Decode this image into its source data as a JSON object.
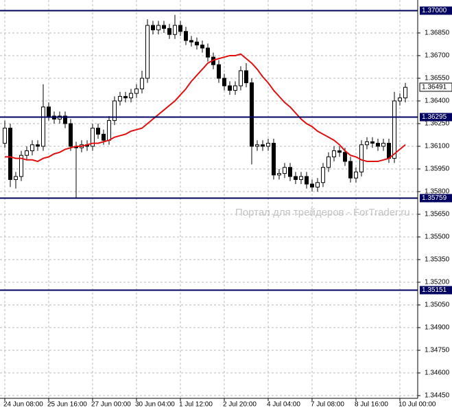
{
  "chart_data": {
    "type": "candlestick",
    "watermark": "Портал для трейдеров - ForTrader.ru",
    "categories": [
      "24 Jun 08:00",
      null,
      null,
      null,
      null,
      null,
      null,
      null,
      "25 Jun 16:00",
      null,
      null,
      null,
      null,
      null,
      null,
      null,
      "27 Jun 00:00",
      null,
      null,
      null,
      null,
      null,
      null,
      null,
      "30 Jun 04:00",
      null,
      null,
      null,
      null,
      null,
      null,
      null,
      "1 Jul 12:00",
      null,
      null,
      null,
      null,
      null,
      null,
      null,
      "2 Jul 20:00",
      null,
      null,
      null,
      null,
      null,
      null,
      null,
      "4 Jul 04:00",
      null,
      null,
      null,
      null,
      null,
      null,
      null,
      "7 Jul 08:00",
      null,
      null,
      null,
      null,
      null,
      null,
      null,
      "8 Jul 16:00",
      null,
      null,
      null,
      null,
      null,
      null,
      null,
      "10 Jul 00:00",
      null
    ],
    "open": [
      1.3612,
      1.3622,
      1.3588,
      1.359,
      1.3604,
      1.3607,
      1.3611,
      1.361,
      1.3636,
      1.363,
      1.3628,
      1.363,
      1.3625,
      1.361,
      1.3609,
      1.3611,
      1.361,
      1.3622,
      1.3618,
      1.3614,
      1.3627,
      1.364,
      1.3643,
      1.3642,
      1.3645,
      1.3648,
      1.3655,
      1.369,
      1.3687,
      1.369,
      1.3688,
      1.3684,
      1.369,
      1.3686,
      1.368,
      1.3679,
      1.3677,
      1.3675,
      1.3669,
      1.3664,
      1.3655,
      1.365,
      1.3647,
      1.365,
      1.366,
      1.3652,
      1.361,
      1.3611,
      1.361,
      1.3612,
      1.3591,
      1.3592,
      1.3596,
      1.359,
      1.3588,
      1.359,
      1.3585,
      1.3583,
      1.3586,
      1.3596,
      1.3603,
      1.3607,
      1.3606,
      1.36,
      1.3589,
      1.3593,
      1.3611,
      1.3613,
      1.3612,
      1.361,
      1.3612,
      1.3602,
      1.364,
      1.3642
    ],
    "high": [
      1.3627,
      1.3625,
      1.3593,
      1.3607,
      1.361,
      1.3614,
      1.3614,
      1.3651,
      1.3639,
      1.3633,
      1.3633,
      1.3633,
      1.3628,
      1.3613,
      1.3614,
      1.3614,
      1.3625,
      1.3625,
      1.3621,
      1.363,
      1.3643,
      1.3646,
      1.3646,
      1.3648,
      1.3651,
      1.366,
      1.3694,
      1.3693,
      1.3693,
      1.3693,
      1.3691,
      1.3697,
      1.3693,
      1.3689,
      1.3683,
      1.3682,
      1.368,
      1.3678,
      1.3672,
      1.3667,
      1.3658,
      1.3653,
      1.3653,
      1.3663,
      1.3665,
      1.3655,
      1.3614,
      1.3614,
      1.3615,
      1.3615,
      1.3595,
      1.3599,
      1.3599,
      1.3593,
      1.3593,
      1.3593,
      1.3588,
      1.3589,
      1.3599,
      1.3606,
      1.361,
      1.361,
      1.3609,
      1.3603,
      1.3596,
      1.3614,
      1.3616,
      1.3616,
      1.3615,
      1.3615,
      1.3615,
      1.3646,
      1.3645,
      1.3652
    ],
    "low": [
      1.3609,
      1.3583,
      1.3582,
      1.3587,
      1.3601,
      1.3604,
      1.3607,
      1.3607,
      1.3627,
      1.3625,
      1.3625,
      1.3622,
      1.3607,
      1.3576,
      1.3606,
      1.3607,
      1.3607,
      1.3615,
      1.3611,
      1.3611,
      1.3624,
      1.3637,
      1.3639,
      1.3639,
      1.3642,
      1.3645,
      1.3652,
      1.3684,
      1.3684,
      1.3685,
      1.3681,
      1.3681,
      1.3683,
      1.3677,
      1.3676,
      1.3674,
      1.3672,
      1.3666,
      1.3661,
      1.3652,
      1.3647,
      1.3644,
      1.3644,
      1.3647,
      1.3649,
      1.3598,
      1.3607,
      1.3607,
      1.3607,
      1.3588,
      1.3588,
      1.3589,
      1.3587,
      1.3585,
      1.3585,
      1.3582,
      1.358,
      1.358,
      1.3583,
      1.3593,
      1.36,
      1.3603,
      1.3597,
      1.3586,
      1.3586,
      1.359,
      1.3608,
      1.3609,
      1.3607,
      1.3607,
      1.3599,
      1.3599,
      1.3637,
      1.3639
    ],
    "close": [
      1.3622,
      1.3588,
      1.359,
      1.3604,
      1.3607,
      1.3611,
      1.361,
      1.3636,
      1.363,
      1.3628,
      1.363,
      1.3625,
      1.361,
      1.3609,
      1.3611,
      1.361,
      1.3622,
      1.3618,
      1.3614,
      1.3627,
      1.364,
      1.3643,
      1.3642,
      1.3645,
      1.3648,
      1.3655,
      1.369,
      1.3687,
      1.369,
      1.3688,
      1.3684,
      1.369,
      1.3686,
      1.368,
      1.3679,
      1.3677,
      1.3675,
      1.3669,
      1.3664,
      1.3655,
      1.365,
      1.3647,
      1.365,
      1.366,
      1.3652,
      1.361,
      1.3611,
      1.361,
      1.3612,
      1.3591,
      1.3592,
      1.3596,
      1.359,
      1.3588,
      1.359,
      1.3585,
      1.3583,
      1.3586,
      1.3596,
      1.3603,
      1.3607,
      1.3606,
      1.36,
      1.3589,
      1.3593,
      1.3611,
      1.3613,
      1.3612,
      1.361,
      1.3612,
      1.3602,
      1.364,
      1.3642,
      1.3649
    ],
    "up_color": "#ffffff",
    "down_color": "#000000",
    "moving_average": {
      "color": "#e01010",
      "values": [
        1.3603,
        1.3603,
        1.3602,
        1.3602,
        1.3601,
        1.3601,
        1.36,
        1.3602,
        1.3603,
        1.3605,
        1.3606,
        1.3608,
        1.3609,
        1.361,
        1.361,
        1.3611,
        1.3612,
        1.3612,
        1.3613,
        1.3614,
        1.3616,
        1.3617,
        1.3618,
        1.362,
        1.3621,
        1.3622,
        1.3625,
        1.3628,
        1.3631,
        1.3634,
        1.3637,
        1.364,
        1.3644,
        1.3648,
        1.3653,
        1.3657,
        1.3661,
        1.3665,
        1.3667,
        1.3668,
        1.3669,
        1.367,
        1.367,
        1.3671,
        1.3668,
        1.3665,
        1.3661,
        1.3656,
        1.3652,
        1.3647,
        1.3643,
        1.3639,
        1.3636,
        1.3632,
        1.3628,
        1.3625,
        1.3623,
        1.362,
        1.3618,
        1.3616,
        1.3614,
        1.3611,
        1.3607,
        1.3604,
        1.3603,
        1.3601,
        1.36,
        1.36,
        1.36,
        1.3601,
        1.3602,
        1.3605,
        1.3608,
        1.3611
      ]
    },
    "levels": [
      {
        "value": 1.37,
        "label": "1.37000"
      },
      {
        "value": 1.36295,
        "label": "1.36295"
      },
      {
        "value": 1.35759,
        "label": "1.35759"
      },
      {
        "value": 1.35151,
        "label": "1.35151"
      }
    ],
    "level_color": "#000060",
    "current_price": {
      "value": 1.36491,
      "label": "1.36491"
    },
    "ylim": [
      1.34432,
      1.37068
    ],
    "yticks": [
      {
        "value": 1.3445,
        "label": "1.34450"
      },
      {
        "value": 1.346,
        "label": "1.34600"
      },
      {
        "value": 1.3475,
        "label": "1.34750"
      },
      {
        "value": 1.349,
        "label": "1.34900"
      },
      {
        "value": 1.3505,
        "label": "1.35050"
      },
      {
        "value": 1.352,
        "label": "1.35200"
      },
      {
        "value": 1.3535,
        "label": "1.35350"
      },
      {
        "value": 1.355,
        "label": "1.35500"
      },
      {
        "value": 1.3565,
        "label": "1.35650"
      },
      {
        "value": 1.358,
        "label": "1.35800"
      },
      {
        "value": 1.3595,
        "label": "1.35950"
      },
      {
        "value": 1.361,
        "label": "1.36100"
      },
      {
        "value": 1.3625,
        "label": "1.36250"
      },
      {
        "value": 1.364,
        "label": "1.36400"
      },
      {
        "value": 1.3655,
        "label": "1.36550"
      },
      {
        "value": 1.367,
        "label": "1.36700"
      },
      {
        "value": 1.3685,
        "label": "1.36850"
      }
    ],
    "grid": true
  }
}
